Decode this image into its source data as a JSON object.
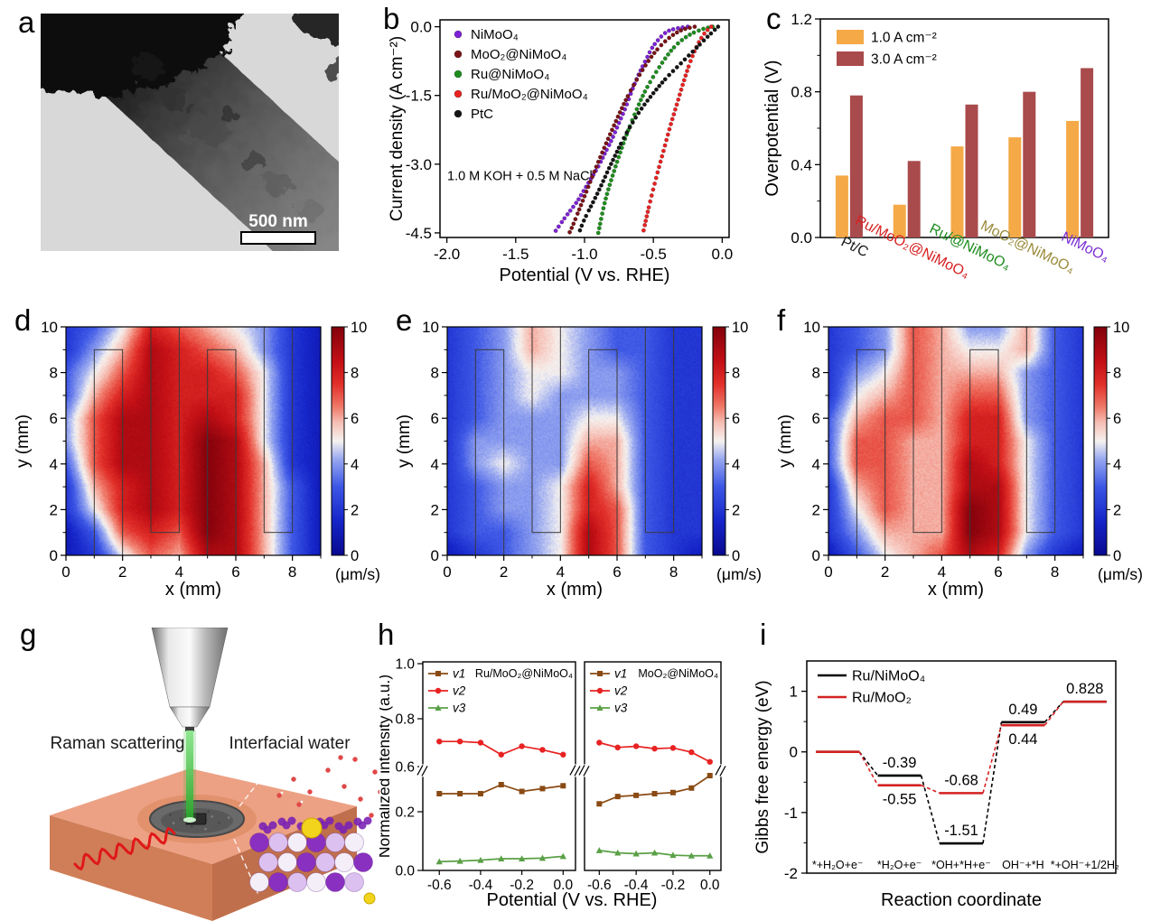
{
  "figure": {
    "background": "#ffffff",
    "panel_letters": [
      "a",
      "b",
      "c",
      "d",
      "e",
      "f",
      "g",
      "h",
      "i"
    ],
    "panel_a": {
      "scalebar_label": "500 nm"
    },
    "panel_g": {
      "label_left": "Raman scattering",
      "label_right": "Interfacial water",
      "colors": {
        "slab_top": "#eda184",
        "slab_front": "#cf7e58",
        "slab_right": "#c06f4c",
        "beam": "#35b535",
        "wave": "#e01818",
        "sphere_purple": "#8a30c0",
        "sphere_light": "#dcc0ef",
        "sphere_white": "#f4eef9",
        "sphere_dark": "#7a22b4",
        "sphere_yellow": "#f2d41c",
        "water_red": "#e04848"
      }
    }
  },
  "chart_data": [
    {
      "id": "b",
      "type": "scatter",
      "xlabel": "Potential (V vs. RHE)",
      "ylabel": "Current density (A cm⁻²)",
      "annotation": "1.0 M KOH + 0.5 M NaCl",
      "xlim": [
        -2.05,
        0.05
      ],
      "ylim": [
        -4.6,
        0.15
      ],
      "xticks": [
        "-2.0",
        "-1.5",
        "-1.0",
        "-0.5",
        "0.0"
      ],
      "yticks": [
        "0.0",
        "-1.5",
        "-3.0",
        "-4.5"
      ],
      "legend_position": "top-left",
      "series": [
        {
          "name": "NiMoO4",
          "label": "NiMoO₄",
          "color": "#7d22d4",
          "points": [
            [
              -0.25,
              0
            ],
            [
              -0.35,
              -0.05
            ],
            [
              -0.42,
              -0.15
            ],
            [
              -0.5,
              -0.42
            ],
            [
              -0.55,
              -0.7
            ],
            [
              -0.6,
              -1.0
            ],
            [
              -0.65,
              -1.35
            ],
            [
              -0.7,
              -1.75
            ],
            [
              -0.75,
              -2.1
            ],
            [
              -0.8,
              -2.45
            ],
            [
              -0.85,
              -2.75
            ],
            [
              -0.9,
              -3.05
            ],
            [
              -0.95,
              -3.3
            ],
            [
              -1.0,
              -3.55
            ],
            [
              -1.05,
              -3.8
            ],
            [
              -1.1,
              -4.0
            ],
            [
              -1.15,
              -4.2
            ],
            [
              -1.22,
              -4.5
            ]
          ]
        },
        {
          "name": "MoO2@NiMoO4",
          "label": "MoO₂@NiMoO₄",
          "color": "#7a1416",
          "points": [
            [
              -0.2,
              0
            ],
            [
              -0.3,
              -0.08
            ],
            [
              -0.4,
              -0.28
            ],
            [
              -0.5,
              -0.6
            ],
            [
              -0.6,
              -1.05
            ],
            [
              -0.7,
              -1.6
            ],
            [
              -0.8,
              -2.25
            ],
            [
              -0.9,
              -2.95
            ],
            [
              -1.0,
              -3.7
            ],
            [
              -1.08,
              -4.3
            ],
            [
              -1.11,
              -4.5
            ]
          ]
        },
        {
          "name": "Ru@NiMoO4",
          "label": "Ru@NiMoO₄",
          "color": "#1e8c1e",
          "points": [
            [
              -0.07,
              0
            ],
            [
              -0.15,
              -0.06
            ],
            [
              -0.25,
              -0.2
            ],
            [
              -0.35,
              -0.45
            ],
            [
              -0.45,
              -0.85
            ],
            [
              -0.55,
              -1.35
            ],
            [
              -0.62,
              -1.8
            ],
            [
              -0.7,
              -2.4
            ],
            [
              -0.78,
              -3.1
            ],
            [
              -0.85,
              -3.8
            ],
            [
              -0.9,
              -4.5
            ]
          ]
        },
        {
          "name": "Ru/MoO2@NiMoO4",
          "label": "Ru/MoO₂@NiMoO₄",
          "color": "#e82222",
          "points": [
            [
              -0.08,
              0
            ],
            [
              -0.13,
              -0.15
            ],
            [
              -0.18,
              -0.4
            ],
            [
              -0.23,
              -0.75
            ],
            [
              -0.28,
              -1.2
            ],
            [
              -0.33,
              -1.7
            ],
            [
              -0.38,
              -2.2
            ],
            [
              -0.43,
              -2.75
            ],
            [
              -0.48,
              -3.3
            ],
            [
              -0.53,
              -3.9
            ],
            [
              -0.575,
              -4.5
            ]
          ]
        },
        {
          "name": "PtC",
          "label": "PtC",
          "color": "#141414",
          "points": [
            [
              -0.03,
              0
            ],
            [
              -0.1,
              -0.2
            ],
            [
              -0.2,
              -0.5
            ],
            [
              -0.3,
              -0.8
            ],
            [
              -0.4,
              -1.1
            ],
            [
              -0.5,
              -1.45
            ],
            [
              -0.6,
              -1.85
            ],
            [
              -0.7,
              -2.35
            ],
            [
              -0.8,
              -2.95
            ],
            [
              -0.9,
              -3.6
            ],
            [
              -1.0,
              -4.2
            ],
            [
              -1.04,
              -4.5
            ]
          ]
        }
      ]
    },
    {
      "id": "c",
      "type": "bar",
      "ylabel": "Overpotential (V)",
      "ylim": [
        0,
        1.2
      ],
      "yticks": [
        "0.0",
        "0.4",
        "0.8",
        "1.2"
      ],
      "minor_yticks": [
        0.2,
        0.6,
        1.0
      ],
      "categories": [
        {
          "label": "Pt/C",
          "color": "#1a1a1a"
        },
        {
          "label": "Ru/MoO₂@NiMoO₄",
          "color": "#d62020"
        },
        {
          "label": "Ru/@NiMoO₄",
          "color": "#1e8c1e"
        },
        {
          "label": "MoO₂@NiMoO₄",
          "color": "#9a8a3a"
        },
        {
          "label": "NiMoO₄",
          "color": "#7d2fd6"
        }
      ],
      "series": [
        {
          "name": "1.0 A cm⁻²",
          "color": "#f5a947",
          "values": [
            0.34,
            0.18,
            0.5,
            0.55,
            0.64
          ]
        },
        {
          "name": "3.0 A cm⁻²",
          "color": "#a94a4c",
          "values": [
            0.78,
            0.42,
            0.73,
            0.8,
            0.93
          ]
        }
      ]
    },
    {
      "id": "d",
      "type": "heatmap",
      "xlabel": "x (mm)",
      "ylabel": "y (mm)",
      "xlim": [
        0,
        9
      ],
      "ylim": [
        0,
        10
      ],
      "xticks": [
        "0",
        "2",
        "4",
        "6",
        "8"
      ],
      "yticks": [
        "0",
        "2",
        "4",
        "6",
        "8",
        "10"
      ],
      "colorbar": {
        "label": "(μm/s)",
        "min": 0,
        "max": 10,
        "ticks": [
          "0",
          "2",
          "4",
          "6",
          "8",
          "10"
        ]
      },
      "electrodes": [
        [
          1,
          0,
          2,
          9
        ],
        [
          3,
          1,
          4,
          10
        ],
        [
          5,
          0,
          6,
          9
        ],
        [
          7,
          1,
          8,
          10
        ]
      ],
      "values": [
        [
          2,
          3,
          5,
          8,
          7,
          6,
          5,
          4,
          2,
          1
        ],
        [
          2,
          4,
          6,
          9,
          8,
          7,
          6,
          4,
          2,
          1
        ],
        [
          3,
          5,
          7,
          9,
          8,
          8,
          7,
          5,
          2,
          1
        ],
        [
          3,
          6,
          8,
          9,
          8,
          8,
          8,
          5,
          2,
          1
        ],
        [
          4,
          7,
          9,
          9,
          8,
          9,
          8,
          5,
          2,
          1
        ],
        [
          4,
          7,
          9,
          9,
          8,
          10,
          9,
          5,
          2,
          1
        ],
        [
          3,
          7,
          9,
          9,
          8,
          10,
          9,
          6,
          2,
          1
        ],
        [
          2,
          6,
          8,
          9,
          8,
          10,
          9,
          6,
          3,
          1
        ],
        [
          2,
          5,
          8,
          9,
          8,
          10,
          9,
          6,
          3,
          1
        ],
        [
          1,
          3,
          7,
          8,
          7,
          10,
          9,
          6,
          3,
          1
        ],
        [
          1,
          2,
          5,
          7,
          6,
          9,
          9,
          6,
          3,
          1
        ]
      ]
    },
    {
      "id": "e",
      "type": "heatmap",
      "xlabel": "x (mm)",
      "ylabel": "y (mm)",
      "xlim": [
        0,
        9
      ],
      "ylim": [
        0,
        10
      ],
      "xticks": [
        "0",
        "2",
        "4",
        "6",
        "8"
      ],
      "yticks": [
        "0",
        "2",
        "4",
        "6",
        "8",
        "10"
      ],
      "colorbar": {
        "label": "(μm/s)",
        "min": 0,
        "max": 10,
        "ticks": [
          "0",
          "2",
          "4",
          "6",
          "8",
          "10"
        ]
      },
      "electrodes": [
        [
          1,
          0,
          2,
          9
        ],
        [
          3,
          1,
          4,
          10
        ],
        [
          5,
          0,
          6,
          9
        ],
        [
          7,
          1,
          8,
          10
        ]
      ],
      "values": [
        [
          2,
          3,
          4,
          6,
          5,
          4,
          3,
          3,
          2,
          2
        ],
        [
          2,
          3,
          4,
          6,
          5,
          4,
          3,
          3,
          2,
          2
        ],
        [
          2,
          3,
          4,
          5,
          5,
          4,
          4,
          3,
          2,
          2
        ],
        [
          2,
          3,
          4,
          5,
          4,
          4,
          4,
          3,
          2,
          2
        ],
        [
          2,
          3,
          4,
          4,
          4,
          5,
          5,
          3,
          2,
          2
        ],
        [
          2,
          4,
          4,
          4,
          4,
          6,
          6,
          3,
          2,
          2
        ],
        [
          2,
          4,
          5,
          4,
          4,
          7,
          6,
          3,
          2,
          2
        ],
        [
          2,
          3,
          4,
          4,
          5,
          8,
          6,
          3,
          2,
          2
        ],
        [
          2,
          3,
          4,
          4,
          5,
          8,
          7,
          3,
          2,
          2
        ],
        [
          2,
          3,
          3,
          4,
          5,
          9,
          7,
          3,
          2,
          2
        ],
        [
          1,
          2,
          3,
          4,
          5,
          9,
          7,
          3,
          2,
          1
        ]
      ]
    },
    {
      "id": "f",
      "type": "heatmap",
      "xlabel": "x (mm)",
      "ylabel": "y (mm)",
      "xlim": [
        0,
        9
      ],
      "ylim": [
        0,
        10
      ],
      "xticks": [
        "0",
        "2",
        "4",
        "6",
        "8"
      ],
      "yticks": [
        "0",
        "2",
        "4",
        "6",
        "8",
        "10"
      ],
      "colorbar": {
        "label": "(μm/s)",
        "min": 0,
        "max": 10,
        "ticks": [
          "0",
          "2",
          "4",
          "6",
          "8",
          "10"
        ]
      },
      "electrodes": [
        [
          1,
          0,
          2,
          9
        ],
        [
          3,
          1,
          4,
          10
        ],
        [
          5,
          0,
          6,
          9
        ],
        [
          7,
          1,
          8,
          10
        ]
      ],
      "values": [
        [
          2,
          3,
          4,
          7,
          6,
          4,
          4,
          6,
          3,
          2
        ],
        [
          2,
          3,
          4,
          7,
          6,
          5,
          5,
          6,
          3,
          2
        ],
        [
          2,
          4,
          5,
          7,
          6,
          6,
          6,
          4,
          3,
          2
        ],
        [
          2,
          5,
          6,
          7,
          6,
          7,
          7,
          4,
          3,
          2
        ],
        [
          3,
          6,
          7,
          7,
          6,
          8,
          8,
          4,
          3,
          2
        ],
        [
          3,
          7,
          7,
          6,
          6,
          8,
          8,
          5,
          3,
          2
        ],
        [
          3,
          7,
          7,
          6,
          6,
          9,
          8,
          5,
          3,
          2
        ],
        [
          2,
          6,
          7,
          6,
          6,
          9,
          9,
          5,
          3,
          2
        ],
        [
          2,
          5,
          7,
          6,
          6,
          10,
          9,
          5,
          3,
          2
        ],
        [
          2,
          4,
          6,
          6,
          6,
          10,
          9,
          5,
          3,
          2
        ],
        [
          1,
          3,
          5,
          6,
          7,
          9,
          8,
          4,
          2,
          1
        ]
      ]
    },
    {
      "id": "h",
      "type": "line",
      "xlabel": "Potential (V vs. RHE)",
      "ylabel": "Normalized intensity (a.u.)",
      "x": [
        -0.6,
        -0.5,
        -0.4,
        -0.3,
        -0.2,
        -0.1,
        0.0
      ],
      "xticks": [
        "-0.6",
        "-0.4",
        "-0.2",
        "0.0"
      ],
      "yticks": [
        "0.0",
        "0.2",
        "0.6",
        "0.8",
        "1.0"
      ],
      "axis_break": 0.565,
      "panels": [
        {
          "label": "Ru/MoO₂@NiMoO₄",
          "series": [
            {
              "name": "v1",
              "color": "#8a4a13",
              "marker": "square",
              "values": [
                0.36,
                0.36,
                0.36,
                0.44,
                0.38,
                0.405,
                0.43
              ]
            },
            {
              "name": "v2",
              "color": "#e82222",
              "marker": "circle",
              "values": [
                0.705,
                0.705,
                0.7,
                0.65,
                0.685,
                0.67,
                0.65
              ]
            },
            {
              "name": "v3",
              "color": "#5aa046",
              "marker": "triangle",
              "values": [
                0.03,
                0.032,
                0.035,
                0.04,
                0.04,
                0.042,
                0.048
              ]
            }
          ]
        },
        {
          "label": "MoO₂@NiMoO₄",
          "series": [
            {
              "name": "v1",
              "color": "#8a4a13",
              "marker": "square",
              "values": [
                0.27,
                0.335,
                0.345,
                0.36,
                0.37,
                0.41,
                0.52
              ]
            },
            {
              "name": "v2",
              "color": "#e82222",
              "marker": "circle",
              "values": [
                0.7,
                0.68,
                0.685,
                0.675,
                0.678,
                0.66,
                0.62
              ]
            },
            {
              "name": "v3",
              "color": "#5aa046",
              "marker": "triangle",
              "values": [
                0.068,
                0.06,
                0.057,
                0.06,
                0.052,
                0.05,
                0.05
              ]
            }
          ]
        }
      ]
    },
    {
      "id": "i",
      "type": "energy-diagram",
      "xlabel": "Reaction coordinate",
      "ylabel": "Gibbs free energy (eV)",
      "ylim": [
        -2,
        1.5
      ],
      "yticks": [
        "-2",
        "-1",
        "0",
        "1"
      ],
      "minor_yticks": [
        -1.5,
        -0.5,
        0.5
      ],
      "states": [
        "*+H₂O+e⁻",
        "*H₂O+e⁻",
        "*OH+*H+e⁻",
        "OH⁻+*H",
        "*+OH⁻+1/2H₂"
      ],
      "series": [
        {
          "name": "Ru/NiMoO₄",
          "color": "#000000",
          "values": [
            0,
            -0.39,
            -1.51,
            0.49,
            0.828
          ]
        },
        {
          "name": "Ru/MoO₂",
          "color": "#d42222",
          "values": [
            0,
            -0.55,
            -0.68,
            0.44,
            0.828
          ]
        }
      ],
      "value_labels": [
        {
          "text": "-0.39",
          "state": 1,
          "value": -0.39,
          "pos": "above"
        },
        {
          "text": "-0.55",
          "state": 1,
          "value": -0.55,
          "pos": "below"
        },
        {
          "text": "-0.68",
          "state": 2,
          "value": -0.68,
          "pos": "above"
        },
        {
          "text": "-1.51",
          "state": 2,
          "value": -1.51,
          "pos": "above"
        },
        {
          "text": "0.49",
          "state": 3,
          "value": 0.49,
          "pos": "above"
        },
        {
          "text": "0.44",
          "state": 3,
          "value": 0.44,
          "pos": "below"
        },
        {
          "text": "0.828",
          "state": 4,
          "value": 0.828,
          "pos": "above"
        }
      ]
    }
  ]
}
